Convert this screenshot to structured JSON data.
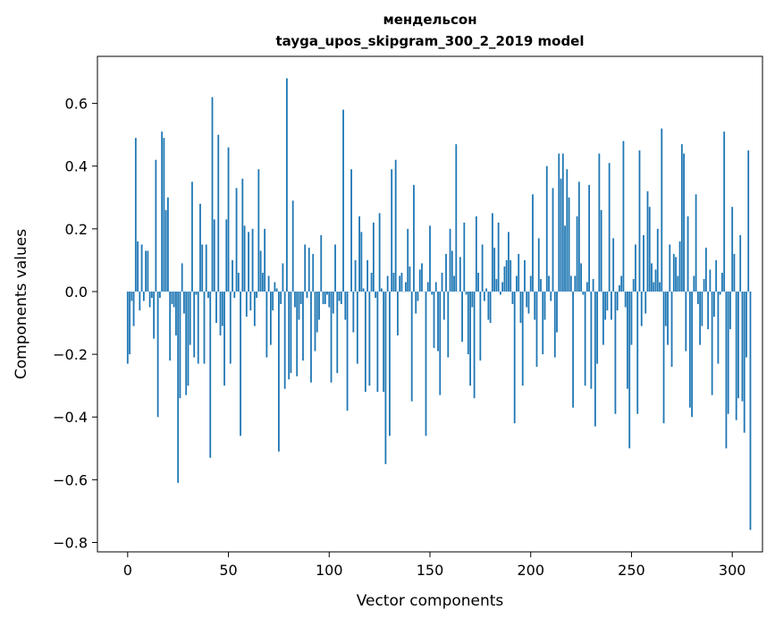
{
  "chart_data": {
    "type": "bar",
    "title_line1": "мендельсон",
    "title_line2": "tayga_upos_skipgram_300_2_2019 model",
    "xlabel": "Vector components",
    "ylabel": "Components values",
    "xlim": [
      -15,
      315
    ],
    "ylim": [
      -0.83,
      0.75
    ],
    "xticks": [
      0,
      50,
      100,
      150,
      200,
      250,
      300
    ],
    "yticks": [
      -0.8,
      -0.6,
      -0.4,
      -0.2,
      0.0,
      0.2,
      0.4,
      0.6
    ],
    "ytick_labels": [
      "−0.8",
      "−0.6",
      "−0.4",
      "−0.2",
      "0.0",
      "0.2",
      "0.4",
      "0.6"
    ],
    "bar_color": "#1f77b4",
    "grid": false,
    "values": [
      -0.23,
      -0.2,
      -0.03,
      -0.11,
      0.49,
      0.16,
      -0.06,
      0.15,
      -0.03,
      0.13,
      0.13,
      -0.05,
      -0.02,
      -0.15,
      0.42,
      -0.4,
      -0.02,
      0.51,
      0.49,
      0.26,
      0.3,
      -0.22,
      -0.04,
      -0.05,
      -0.14,
      -0.61,
      -0.34,
      0.09,
      -0.07,
      -0.33,
      -0.3,
      -0.17,
      0.35,
      -0.21,
      -0.01,
      -0.23,
      0.28,
      0.15,
      -0.23,
      0.15,
      -0.02,
      -0.53,
      0.62,
      0.23,
      -0.1,
      0.5,
      -0.14,
      -0.11,
      -0.3,
      0.23,
      0.46,
      -0.23,
      0.1,
      -0.02,
      0.33,
      0.06,
      -0.46,
      0.36,
      0.21,
      -0.08,
      0.19,
      -0.06,
      0.2,
      -0.11,
      -0.02,
      0.39,
      0.13,
      0.06,
      0.2,
      -0.21,
      0.05,
      -0.17,
      -0.06,
      0.03,
      0.01,
      -0.51,
      -0.04,
      0.09,
      -0.31,
      0.68,
      -0.28,
      -0.26,
      0.29,
      -0.05,
      -0.27,
      -0.09,
      -0.04,
      -0.22,
      0.15,
      -0.02,
      0.14,
      -0.29,
      0.12,
      -0.19,
      -0.13,
      -0.09,
      0.18,
      -0.04,
      -0.04,
      -0.01,
      -0.05,
      -0.29,
      -0.07,
      0.15,
      -0.26,
      -0.03,
      -0.04,
      0.58,
      -0.09,
      -0.38,
      0.0,
      0.39,
      -0.13,
      0.1,
      -0.23,
      0.24,
      0.19,
      0.01,
      -0.32,
      0.1,
      -0.3,
      0.06,
      0.22,
      -0.02,
      -0.32,
      0.25,
      0.01,
      -0.32,
      -0.55,
      0.05,
      -0.46,
      0.39,
      0.06,
      0.42,
      -0.14,
      0.05,
      0.06,
      0.0,
      0.03,
      0.2,
      0.08,
      -0.35,
      0.34,
      -0.07,
      -0.03,
      0.07,
      0.09,
      0.0,
      -0.46,
      0.03,
      0.21,
      -0.01,
      -0.18,
      0.03,
      -0.19,
      -0.33,
      0.06,
      -0.09,
      0.12,
      -0.21,
      0.2,
      0.13,
      0.05,
      0.47,
      0.0,
      0.11,
      -0.16,
      0.22,
      -0.01,
      -0.2,
      -0.3,
      -0.05,
      -0.34,
      0.24,
      0.06,
      -0.22,
      0.15,
      -0.03,
      0.01,
      -0.09,
      -0.1,
      0.25,
      0.14,
      0.04,
      0.22,
      -0.01,
      0.03,
      0.08,
      0.1,
      0.19,
      0.1,
      -0.04,
      -0.42,
      0.05,
      0.12,
      -0.1,
      -0.3,
      0.1,
      -0.05,
      -0.07,
      0.05,
      0.31,
      -0.09,
      -0.24,
      0.17,
      0.04,
      -0.2,
      -0.09,
      0.4,
      0.05,
      -0.03,
      0.33,
      -0.21,
      -0.13,
      0.44,
      0.36,
      0.44,
      0.21,
      0.39,
      0.3,
      0.05,
      -0.37,
      0.05,
      0.24,
      0.35,
      0.09,
      -0.01,
      -0.3,
      0.03,
      0.34,
      -0.31,
      0.04,
      -0.43,
      -0.23,
      0.44,
      0.26,
      -0.17,
      -0.09,
      -0.06,
      0.41,
      -0.09,
      0.17,
      -0.39,
      -0.06,
      0.02,
      0.05,
      0.48,
      -0.05,
      -0.31,
      -0.5,
      -0.17,
      0.04,
      0.15,
      -0.39,
      0.45,
      -0.11,
      0.18,
      -0.07,
      0.32,
      0.27,
      0.09,
      0.03,
      0.07,
      0.2,
      0.03,
      0.52,
      -0.42,
      -0.11,
      -0.17,
      0.15,
      -0.24,
      0.12,
      0.11,
      0.05,
      0.16,
      0.47,
      0.44,
      -0.19,
      0.24,
      -0.37,
      -0.4,
      0.05,
      0.31,
      -0.04,
      -0.17,
      -0.11,
      0.04,
      0.14,
      -0.12,
      0.07,
      -0.33,
      -0.08,
      0.1,
      -0.23,
      -0.01,
      0.06,
      0.51,
      -0.5,
      -0.39,
      -0.12,
      0.27,
      0.12,
      -0.41,
      -0.34,
      0.18,
      -0.35,
      -0.45,
      -0.21,
      0.45,
      -0.76
    ]
  }
}
